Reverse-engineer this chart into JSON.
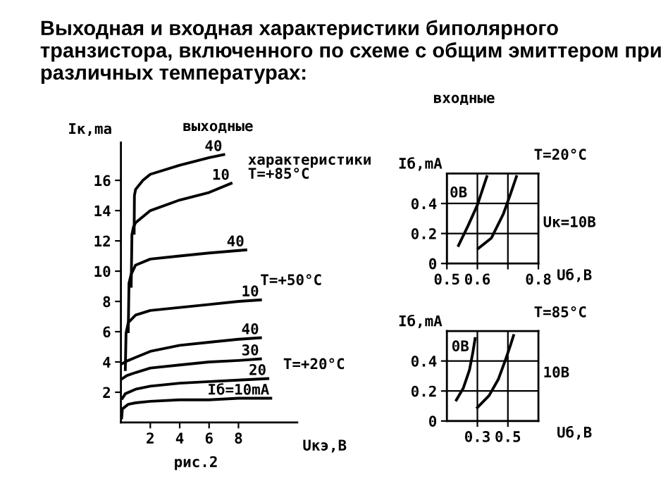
{
  "chart_data": [
    {
      "type": "line",
      "title": "Выходная и входная характеристики биполярного транзистора, включенного по схеме с общим эмиттером при различных температурах:",
      "xlabel": "Uкэ,B",
      "ylabel": "Iк,ma",
      "xlim": [
        0,
        12
      ],
      "ylim": [
        0,
        18.5
      ],
      "xticks": [
        2,
        4,
        6,
        8
      ],
      "yticks": [
        2,
        4,
        6,
        8,
        10,
        12,
        14,
        16
      ],
      "grid": false,
      "legend": false,
      "line_style": "solid",
      "annotations": [
        "выходные",
        "характеристики",
        "T=+85°C",
        "T=+50°C",
        "T=+20°C",
        "рис.2"
      ],
      "series": [
        {
          "name": "Iб=10mA",
          "color": "#000000",
          "x": [
            0.05,
            0.1,
            0.5,
            1,
            2,
            4,
            6,
            8,
            10.2
          ],
          "values": [
            0.3,
            0.9,
            1.2,
            1.3,
            1.4,
            1.5,
            1.5,
            1.6,
            1.6
          ]
        },
        {
          "name": "20",
          "color": "#000000",
          "x": [
            0.1,
            0.3,
            1,
            2,
            4,
            6,
            8,
            10
          ],
          "values": [
            1.6,
            1.9,
            2.2,
            2.4,
            2.6,
            2.7,
            2.8,
            2.9
          ]
        },
        {
          "name": "30",
          "color": "#000000",
          "x": [
            0.1,
            0.4,
            1,
            2,
            4,
            6,
            8,
            9.5
          ],
          "values": [
            2.9,
            3.1,
            3.3,
            3.6,
            3.8,
            4.0,
            4.1,
            4.2
          ]
        },
        {
          "name": "40",
          "color": "#000000",
          "x": [
            0.1,
            0.5,
            1,
            2,
            4,
            6,
            8,
            9.5
          ],
          "values": [
            3.9,
            4.1,
            4.3,
            4.7,
            5.1,
            5.3,
            5.5,
            5.6
          ]
        },
        {
          "name": "10",
          "color": "#000000",
          "x": [
            0.3,
            0.35,
            0.5,
            1,
            2,
            4,
            6,
            8,
            9.5
          ],
          "values": [
            3.5,
            5.9,
            6.6,
            7.1,
            7.4,
            7.6,
            7.8,
            8.0,
            8.1
          ]
        },
        {
          "name": "40",
          "color": "#000000",
          "x": [
            0.5,
            0.55,
            0.7,
            1,
            2,
            4,
            6,
            8.5
          ],
          "values": [
            6.0,
            9.2,
            9.8,
            10.4,
            10.8,
            11.0,
            11.2,
            11.4
          ]
        },
        {
          "name": "10",
          "color": "#000000",
          "x": [
            0.7,
            0.75,
            0.85,
            1,
            2,
            4,
            6,
            7.5
          ],
          "values": [
            9.0,
            12.4,
            12.9,
            13.2,
            14.0,
            14.7,
            15.2,
            15.8
          ]
        },
        {
          "name": "40",
          "color": "#000000",
          "x": [
            0.9,
            0.92,
            1,
            1.5,
            2,
            4,
            6,
            7
          ],
          "values": [
            12.5,
            15.0,
            15.4,
            16.0,
            16.4,
            17.0,
            17.5,
            17.7
          ]
        }
      ]
    },
    {
      "type": "line",
      "xlabel": "Uб,B",
      "ylabel": "Iб,mA",
      "xlim": [
        0.5,
        0.8
      ],
      "ylim": [
        0,
        0.6
      ],
      "xticks": [
        0.5,
        0.6,
        {
          "value": 0.7,
          "label": null
        },
        0.8
      ],
      "yticks": [
        0,
        0.2,
        0.4
      ],
      "grid": true,
      "legend": false,
      "line_style": "solid",
      "annotations": [
        "входные",
        "T=20°C"
      ],
      "series": [
        {
          "name": "0B",
          "color": "#000000",
          "x": [
            0.538,
            0.569,
            0.6,
            0.631
          ],
          "values": [
            0.12,
            0.25,
            0.39,
            0.58
          ]
        },
        {
          "name": "Uк=10B",
          "color": "#000000",
          "x": [
            0.603,
            0.646,
            0.685,
            0.708,
            0.728
          ],
          "values": [
            0.1,
            0.17,
            0.33,
            0.46,
            0.58
          ]
        }
      ]
    },
    {
      "type": "line",
      "xlabel": "Uб,B",
      "ylabel": "Iб,mA",
      "xlim": [
        0.1,
        0.7
      ],
      "ylim": [
        0,
        0.6
      ],
      "xticks": [
        0.3,
        0.5
      ],
      "yticks": [
        0,
        0.2,
        0.4
      ],
      "grid": true,
      "legend": false,
      "line_style": "solid",
      "annotations": [
        "T=85°C"
      ],
      "series": [
        {
          "name": "0B",
          "color": "#000000",
          "x": [
            0.162,
            0.208,
            0.248,
            0.269,
            0.285
          ],
          "values": [
            0.14,
            0.22,
            0.34,
            0.45,
            0.55
          ]
        },
        {
          "name": "10B",
          "color": "#000000",
          "x": [
            0.3,
            0.377,
            0.438,
            0.485,
            0.515,
            0.537
          ],
          "values": [
            0.09,
            0.17,
            0.28,
            0.41,
            0.5,
            0.57
          ]
        }
      ]
    }
  ]
}
